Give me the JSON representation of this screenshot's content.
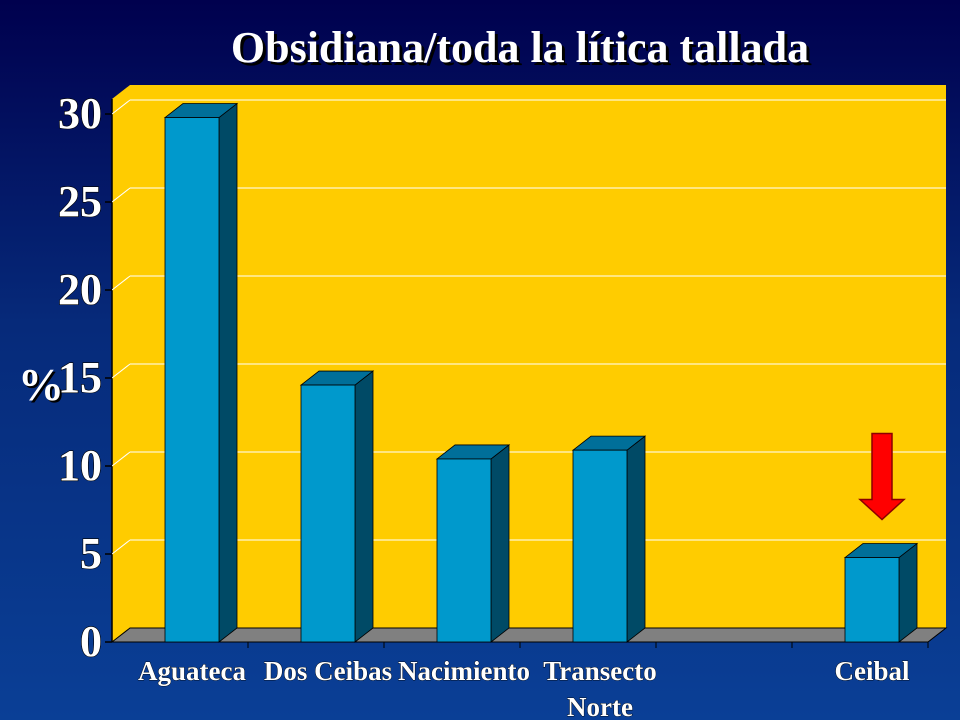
{
  "chart_data": {
    "type": "bar",
    "title": "Obsidiana/toda la lítica tallada",
    "ylabel": "%",
    "xlabel": "",
    "categories": [
      [
        "Aguateca"
      ],
      [
        "Dos Ceibas"
      ],
      [
        "Nacimiento"
      ],
      [
        "Transecto",
        "Norte"
      ],
      [
        ""
      ],
      [
        "Ceibal"
      ]
    ],
    "values": [
      29.8,
      14.6,
      10.4,
      10.9,
      null,
      4.8
    ],
    "yticks": [
      0,
      5,
      10,
      15,
      20,
      25,
      30
    ],
    "ylim": [
      0,
      30
    ],
    "grid": true,
    "annotations": [
      {
        "type": "arrow",
        "direction": "down",
        "category": "Ceibal",
        "color": "#ff0000"
      }
    ],
    "colors": {
      "bar_front": "#0099cc",
      "bar_side": "#004a66",
      "bar_top": "#006f99",
      "plot_background": "#ffcc00",
      "floor": "#808080",
      "gridline": "#ffffff",
      "arrow": "#ff0000",
      "text": "#ffffff"
    }
  }
}
